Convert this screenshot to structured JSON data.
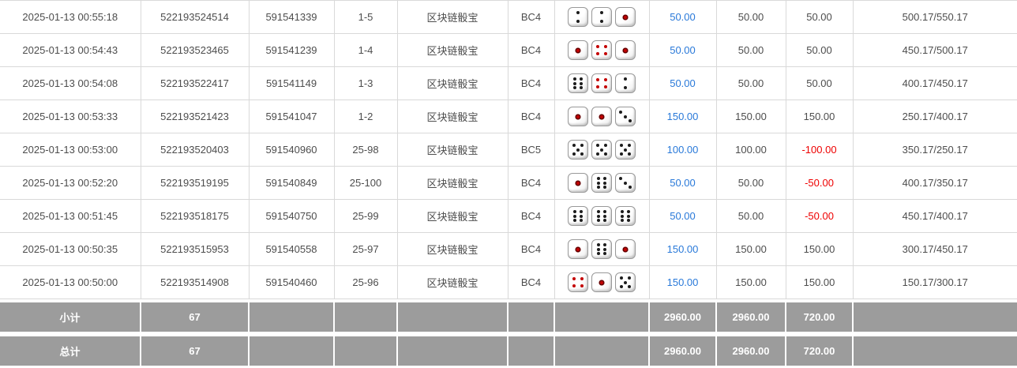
{
  "colors": {
    "bet_link_blue": "#2979d9",
    "negative_red": "#ee0000",
    "summary_bg_gray": "#9c9c9c",
    "row_border_gray": "#d9d9d9",
    "text_gray": "#4d4d4d"
  },
  "table": {
    "rows": [
      {
        "time": "2025-01-13 00:55:18",
        "order_no": "522193524514",
        "round_id": "591541339",
        "round": "1-5",
        "game": "区块链骰宝",
        "table_name": "BC4",
        "dice": [
          2,
          2,
          1
        ],
        "bet": "50.00",
        "valid_bet": "50.00",
        "win_loss": "50.00",
        "balance": "500.17/550.17"
      },
      {
        "time": "2025-01-13 00:54:43",
        "order_no": "522193523465",
        "round_id": "591541239",
        "round": "1-4",
        "game": "区块链骰宝",
        "table_name": "BC4",
        "dice": [
          1,
          4,
          1
        ],
        "bet": "50.00",
        "valid_bet": "50.00",
        "win_loss": "50.00",
        "balance": "450.17/500.17"
      },
      {
        "time": "2025-01-13 00:54:08",
        "order_no": "522193522417",
        "round_id": "591541149",
        "round": "1-3",
        "game": "区块链骰宝",
        "table_name": "BC4",
        "dice": [
          6,
          4,
          2
        ],
        "bet": "50.00",
        "valid_bet": "50.00",
        "win_loss": "50.00",
        "balance": "400.17/450.17"
      },
      {
        "time": "2025-01-13 00:53:33",
        "order_no": "522193521423",
        "round_id": "591541047",
        "round": "1-2",
        "game": "区块链骰宝",
        "table_name": "BC4",
        "dice": [
          1,
          1,
          3
        ],
        "bet": "150.00",
        "valid_bet": "150.00",
        "win_loss": "150.00",
        "balance": "250.17/400.17"
      },
      {
        "time": "2025-01-13 00:53:00",
        "order_no": "522193520403",
        "round_id": "591540960",
        "round": "25-98",
        "game": "区块链骰宝",
        "table_name": "BC5",
        "dice": [
          5,
          5,
          5
        ],
        "bet": "100.00",
        "valid_bet": "100.00",
        "win_loss": "-100.00",
        "balance": "350.17/250.17"
      },
      {
        "time": "2025-01-13 00:52:20",
        "order_no": "522193519195",
        "round_id": "591540849",
        "round": "25-100",
        "game": "区块链骰宝",
        "table_name": "BC4",
        "dice": [
          1,
          6,
          3
        ],
        "bet": "50.00",
        "valid_bet": "50.00",
        "win_loss": "-50.00",
        "balance": "400.17/350.17"
      },
      {
        "time": "2025-01-13 00:51:45",
        "order_no": "522193518175",
        "round_id": "591540750",
        "round": "25-99",
        "game": "区块链骰宝",
        "table_name": "BC4",
        "dice": [
          6,
          6,
          6
        ],
        "bet": "50.00",
        "valid_bet": "50.00",
        "win_loss": "-50.00",
        "balance": "450.17/400.17"
      },
      {
        "time": "2025-01-13 00:50:35",
        "order_no": "522193515953",
        "round_id": "591540558",
        "round": "25-97",
        "game": "区块链骰宝",
        "table_name": "BC4",
        "dice": [
          1,
          6,
          1
        ],
        "bet": "150.00",
        "valid_bet": "150.00",
        "win_loss": "150.00",
        "balance": "300.17/450.17"
      },
      {
        "time": "2025-01-13 00:50:00",
        "order_no": "522193514908",
        "round_id": "591540460",
        "round": "25-96",
        "game": "区块链骰宝",
        "table_name": "BC4",
        "dice": [
          4,
          1,
          5
        ],
        "bet": "150.00",
        "valid_bet": "150.00",
        "win_loss": "150.00",
        "balance": "150.17/300.17"
      }
    ],
    "summary_rows": [
      {
        "label": "小计",
        "count": "67",
        "bet_total": "2960.00",
        "valid_bet_total": "2960.00",
        "win_loss_total": "720.00"
      },
      {
        "label": "总计",
        "count": "67",
        "bet_total": "2960.00",
        "valid_bet_total": "2960.00",
        "win_loss_total": "720.00"
      }
    ]
  }
}
